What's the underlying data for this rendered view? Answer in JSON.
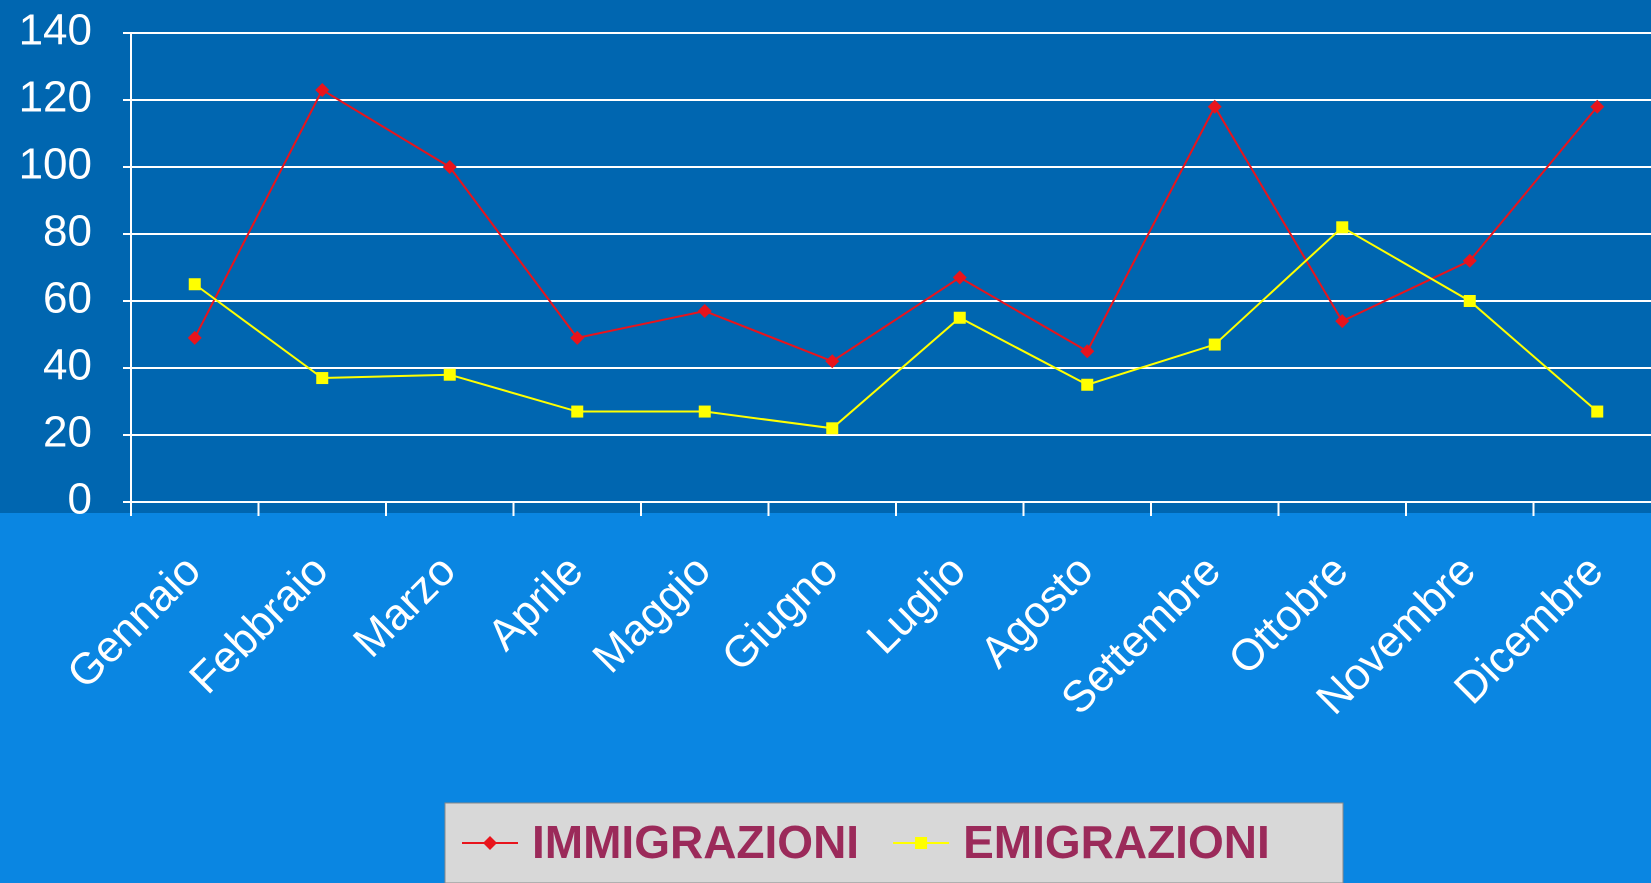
{
  "chart_data": {
    "type": "line",
    "categories": [
      "Gennaio",
      "Febbraio",
      "Marzo",
      "Aprile",
      "Maggio",
      "Giugno",
      "Luglio",
      "Agosto",
      "Settembre",
      "Ottobre",
      "Novembre",
      "Dicembre"
    ],
    "series": [
      {
        "name": "IMMIGRAZIONI",
        "color": "#e8141c",
        "marker": "diamond",
        "values": [
          49,
          123,
          100,
          49,
          57,
          42,
          67,
          45,
          118,
          54,
          72,
          118
        ]
      },
      {
        "name": "EMIGRAZIONI",
        "color": "#ffff00",
        "marker": "square",
        "values": [
          65,
          37,
          38,
          27,
          27,
          22,
          55,
          35,
          47,
          82,
          60,
          27
        ]
      }
    ],
    "ylim": [
      0,
      140
    ],
    "yticks": [
      0,
      20,
      40,
      60,
      80,
      100,
      120,
      140
    ],
    "grid": true,
    "legend": "bottom"
  }
}
